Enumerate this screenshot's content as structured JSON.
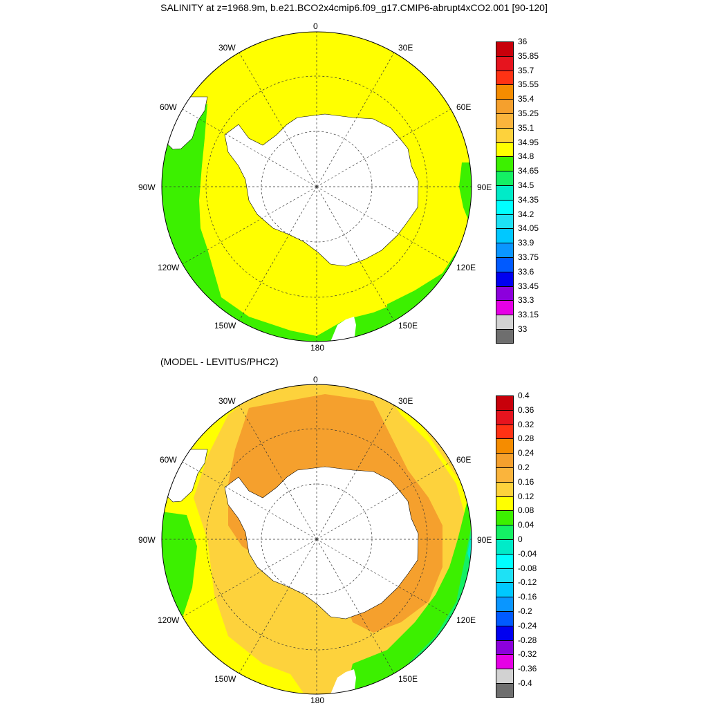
{
  "title": "SALINITY at z=1968.9m, b.e21.BCO2x4cmip6.f09_g17.CMIP6-abrupt4xCO2.001 [90-120]",
  "subtitle": "(MODEL - LEVITUS/PHC2)",
  "map_labels": {
    "lon_0": "0",
    "lon_30e": "30E",
    "lon_60e": "60E",
    "lon_90e": "90E",
    "lon_120e": "120E",
    "lon_150e": "150E",
    "lon_180": "180",
    "lon_150w": "150W",
    "lon_120w": "120W",
    "lon_90w": "90W",
    "lon_60w": "60W",
    "lon_30w": "30W"
  },
  "colorbar_top": {
    "labels": [
      "36",
      "35.85",
      "35.7",
      "35.55",
      "35.4",
      "35.25",
      "35.1",
      "34.95",
      "34.8",
      "34.65",
      "34.5",
      "34.35",
      "34.2",
      "34.05",
      "33.9",
      "33.75",
      "33.6",
      "33.45",
      "33.3",
      "33.15",
      "33"
    ],
    "colors": [
      "#c8000a",
      "#e6141e",
      "#ff3214",
      "#f58c00",
      "#f5a02d",
      "#fab43c",
      "#fdd23c",
      "#ffff00",
      "#3cf000",
      "#14f064",
      "#00ebc8",
      "#00ffff",
      "#1ee1f5",
      "#00c8ff",
      "#0a96ff",
      "#005aff",
      "#0000f0",
      "#8c00dc",
      "#e600e6",
      "#d2d2d2",
      "#6e6e6e"
    ]
  },
  "colorbar_bottom": {
    "labels": [
      "0.4",
      "0.36",
      "0.32",
      "0.28",
      "0.24",
      "0.2",
      "0.16",
      "0.12",
      "0.08",
      "0.04",
      "0",
      "-0.04",
      "-0.08",
      "-0.12",
      "-0.16",
      "-0.2",
      "-0.24",
      "-0.28",
      "-0.32",
      "-0.36",
      "-0.4"
    ],
    "colors": [
      "#c8000a",
      "#e6141e",
      "#ff3214",
      "#f58c00",
      "#f5a02d",
      "#fab43c",
      "#fdd23c",
      "#ffff00",
      "#3cf000",
      "#14f064",
      "#00ebc8",
      "#00ffff",
      "#1ee1f5",
      "#00c8ff",
      "#0a96ff",
      "#005aff",
      "#0000f0",
      "#8c00dc",
      "#e600e6",
      "#d2d2d2",
      "#6e6e6e"
    ]
  },
  "panel_top": {
    "field": "salinity",
    "ocean_color": "#ffff00",
    "fringe_color": "#3cf000",
    "land_color": "#ffffff"
  },
  "panel_bottom": {
    "field": "salinity difference",
    "zones": [
      "#3cf000",
      "#ffff00",
      "#fdd23c",
      "#f5a02d",
      "#f58c00",
      "#14f064",
      "#00ebc8"
    ]
  }
}
